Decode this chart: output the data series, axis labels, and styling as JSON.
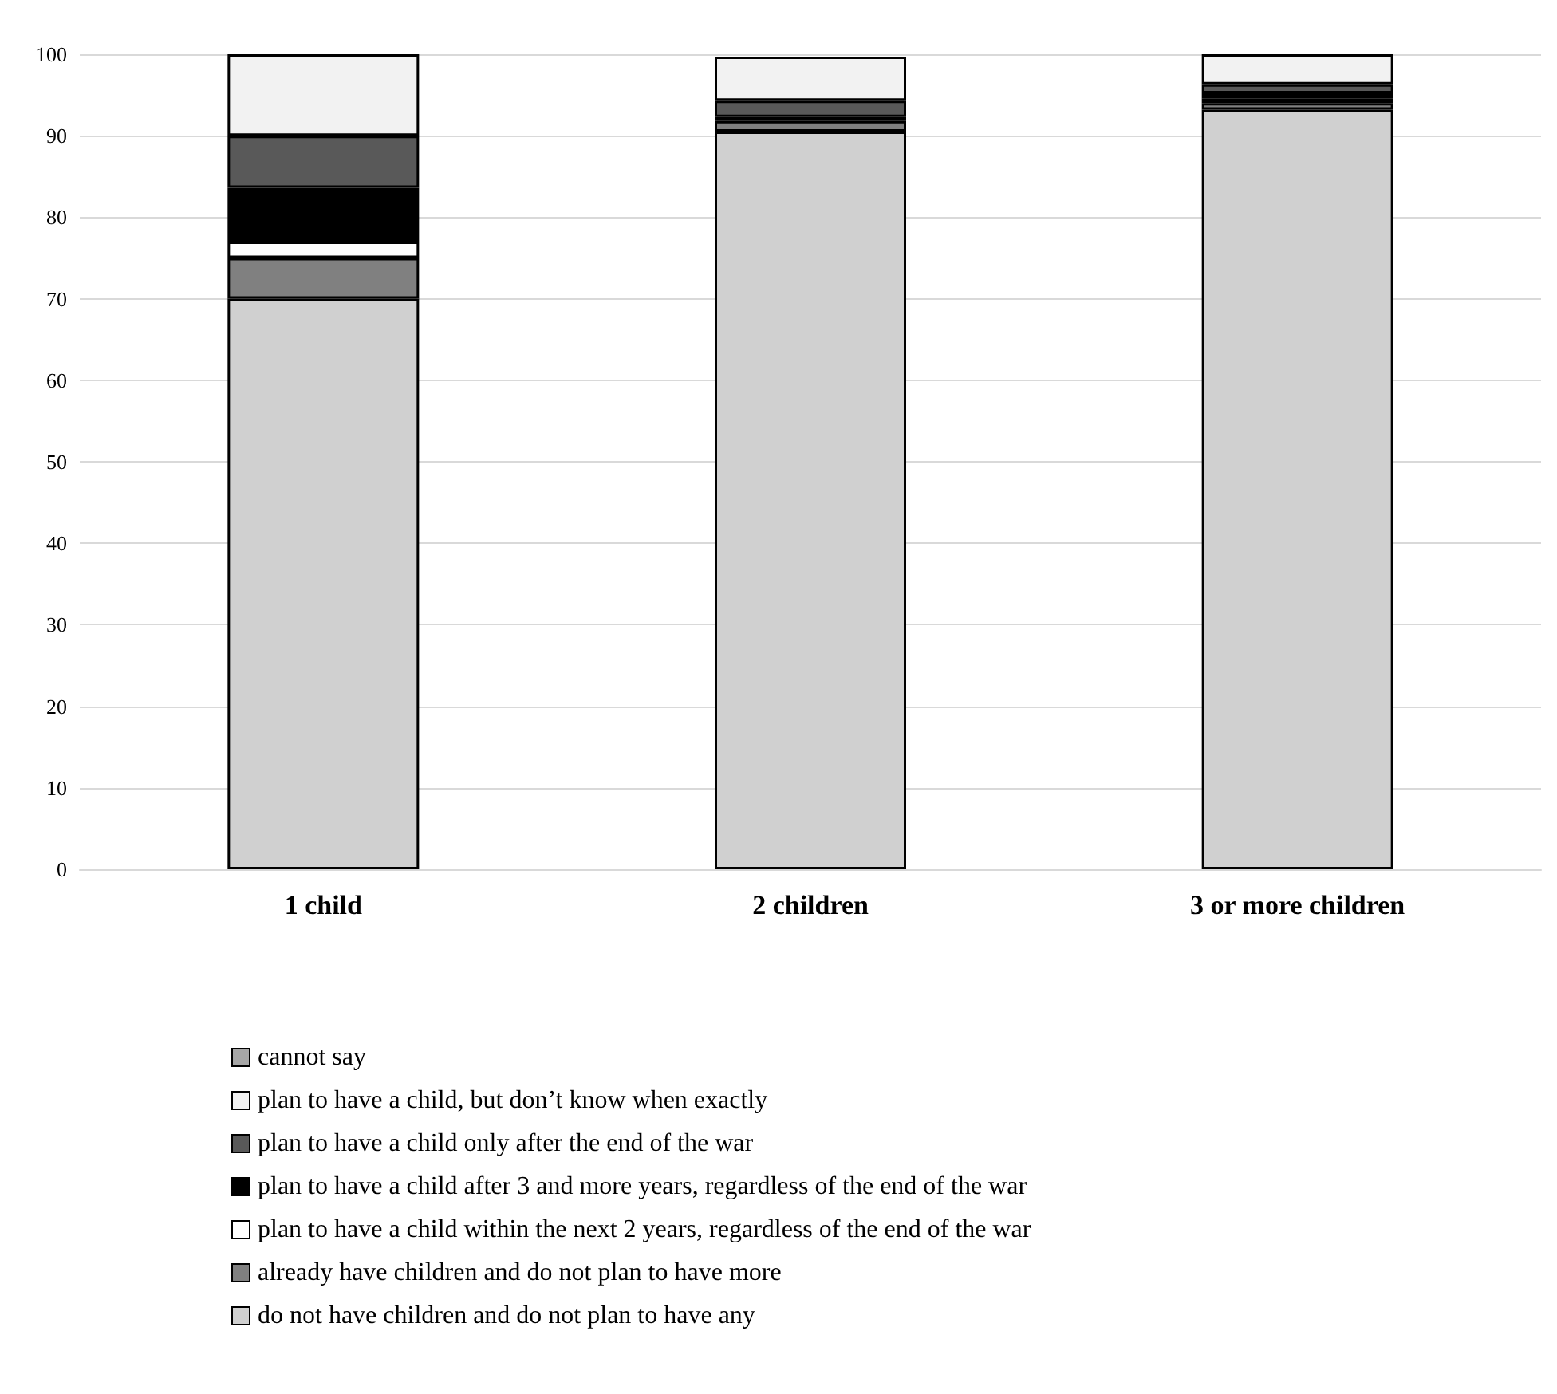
{
  "chart_data": {
    "type": "bar",
    "stacked": true,
    "categories": [
      "1 child",
      "2 children",
      "3 or more children"
    ],
    "series": [
      {
        "name": "do not have children and do not plan to have any",
        "color": "#d0d0d0",
        "values": [
          70,
          90.5,
          93.2
        ]
      },
      {
        "name": "already have children and do not plan to have more",
        "color": "#808080",
        "values": [
          5,
          1.3,
          0.8
        ]
      },
      {
        "name": "plan to have a child within the next 2 years, regardless of the end of the war",
        "color": "#ffffff",
        "values": [
          2,
          null,
          0.6
        ]
      },
      {
        "name": "plan to have a child after 3 and more years, regardless of the end of the war",
        "color": "#000000",
        "values": [
          6.6,
          0.5,
          0.6
        ]
      },
      {
        "name": "plan to have a child only after the end of the war",
        "color": "#595959",
        "values": [
          6.4,
          2,
          1.1
        ]
      },
      {
        "name": "plan to have a child, but don’t know when exactly",
        "color": "#f2f2f2",
        "values": [
          10,
          5.4,
          3.7
        ]
      },
      {
        "name": "cannot say",
        "color": "#a6a6a6",
        "values": [
          0,
          0,
          0
        ]
      }
    ],
    "ylim": [
      0,
      100
    ],
    "yticks": [
      0,
      10,
      20,
      30,
      40,
      50,
      60,
      70,
      80,
      90,
      100
    ],
    "grid": "y",
    "legend": "bottom"
  }
}
